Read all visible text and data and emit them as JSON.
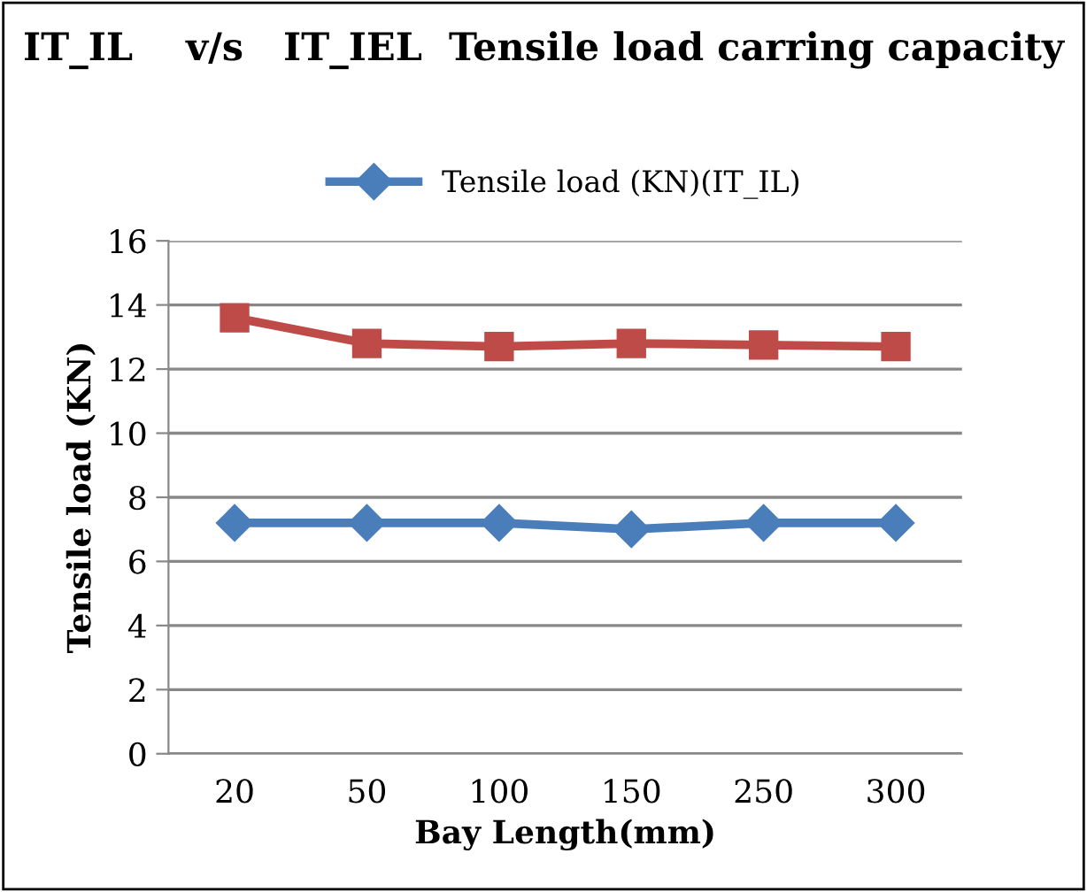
{
  "chart_data": {
    "type": "line",
    "title": "IT_IL    v/s   IT_IEL  Tensile load carring capacity",
    "xlabel": "Bay Length(mm)",
    "ylabel": "Tensile load (KN)",
    "categories": [
      "20",
      "50",
      "100",
      "150",
      "250",
      "300"
    ],
    "series": [
      {
        "name": "Tensile load (KN)(IT_IL)",
        "color": "#4a7ebb",
        "marker": "diamond",
        "values": [
          7.2,
          7.2,
          7.2,
          7.0,
          7.2,
          7.2
        ]
      },
      {
        "color": "#be4b48",
        "marker": "square",
        "values": [
          13.6,
          12.8,
          12.7,
          12.8,
          12.75,
          12.7
        ]
      }
    ],
    "ylim": [
      0,
      16
    ],
    "yticks": [
      0,
      2,
      4,
      6,
      8,
      10,
      12,
      14,
      16
    ],
    "grid": "y",
    "legend": "top"
  }
}
